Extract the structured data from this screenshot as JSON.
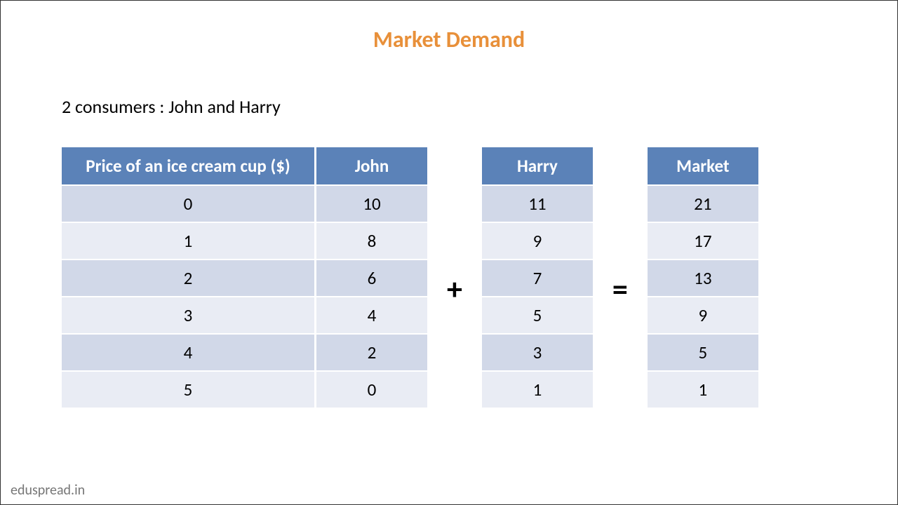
{
  "title": "Market Demand",
  "title_color": "#e8903a",
  "subtitle": "2 consumers : John and Harry",
  "watermark": "eduspread.in",
  "header_bg": "#5b82b8",
  "row_odd_bg": "#d1d8e8",
  "row_even_bg": "#e9ecf4",
  "columns": {
    "price": "Price of an ice cream cup ($)",
    "john": "John",
    "harry": "Harry",
    "market": "Market"
  },
  "operators": {
    "plus": "+",
    "equals": "="
  },
  "rows": [
    {
      "price": "0",
      "john": "10",
      "harry": "11",
      "market": "21"
    },
    {
      "price": "1",
      "john": "8",
      "harry": "9",
      "market": "17"
    },
    {
      "price": "2",
      "john": "6",
      "harry": "7",
      "market": "13"
    },
    {
      "price": "3",
      "john": "4",
      "harry": "5",
      "market": "9"
    },
    {
      "price": "4",
      "john": "2",
      "harry": "3",
      "market": "5"
    },
    {
      "price": "5",
      "john": "0",
      "harry": "1",
      "market": "1"
    }
  ]
}
